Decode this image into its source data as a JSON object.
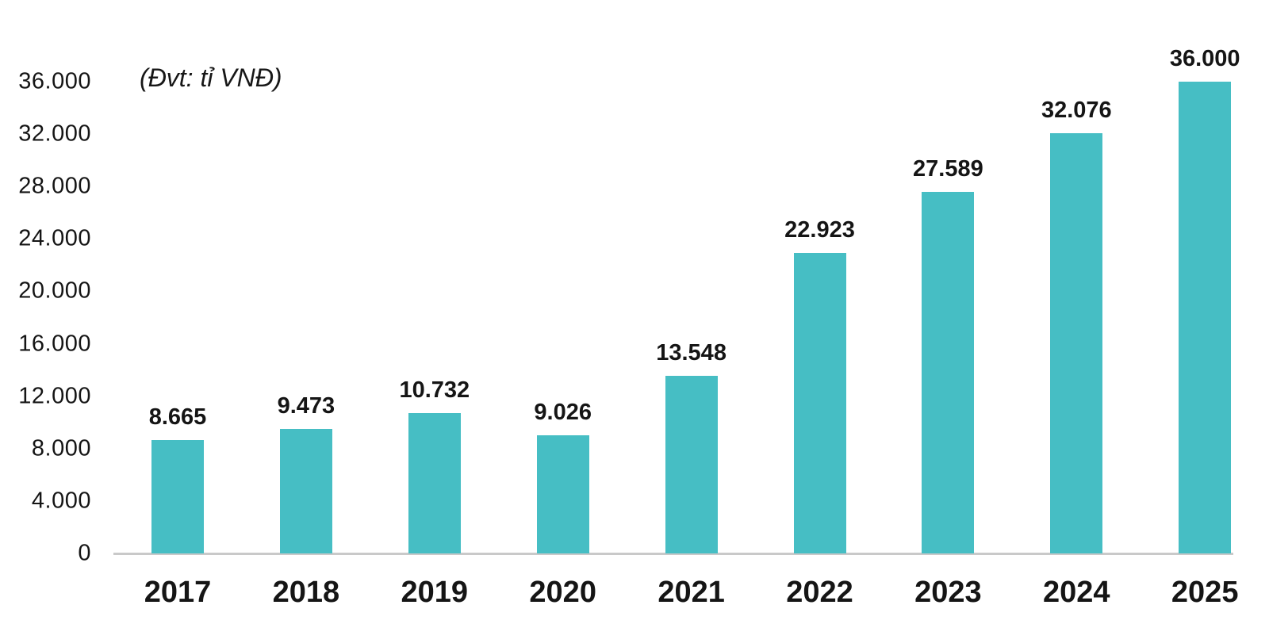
{
  "chart_data": {
    "type": "bar",
    "title": "",
    "annotation": "(Đvt: tỉ VNĐ)",
    "categories": [
      "2017",
      "2018",
      "2019",
      "2020",
      "2021",
      "2022",
      "2023",
      "2024",
      "2025"
    ],
    "values": [
      8665,
      9473,
      10732,
      9026,
      13548,
      22923,
      27589,
      32076,
      36000
    ],
    "value_labels": [
      "8.665",
      "9.473",
      "10.732",
      "9.026",
      "13.548",
      "22.923",
      "27.589",
      "32.076",
      "36.000"
    ],
    "xlabel": "",
    "ylabel": "",
    "ylim": [
      0,
      36000
    ],
    "yticks": [
      {
        "label": "0",
        "value": 0
      },
      {
        "label": "4.000",
        "value": 4000
      },
      {
        "label": "8.000",
        "value": 8000
      },
      {
        "label": "12.000",
        "value": 12000
      },
      {
        "label": "16.000",
        "value": 16000
      },
      {
        "label": "20.000",
        "value": 20000
      },
      {
        "label": "24.000",
        "value": 24000
      },
      {
        "label": "28.000",
        "value": 28000
      },
      {
        "label": "32.000",
        "value": 32000
      },
      {
        "label": "36.000",
        "value": 36000
      }
    ],
    "grid": false,
    "legend_position": "none",
    "bar_color": "#46bec4",
    "axis_line_color": "#c9c9c9",
    "text_color": "#151515"
  }
}
